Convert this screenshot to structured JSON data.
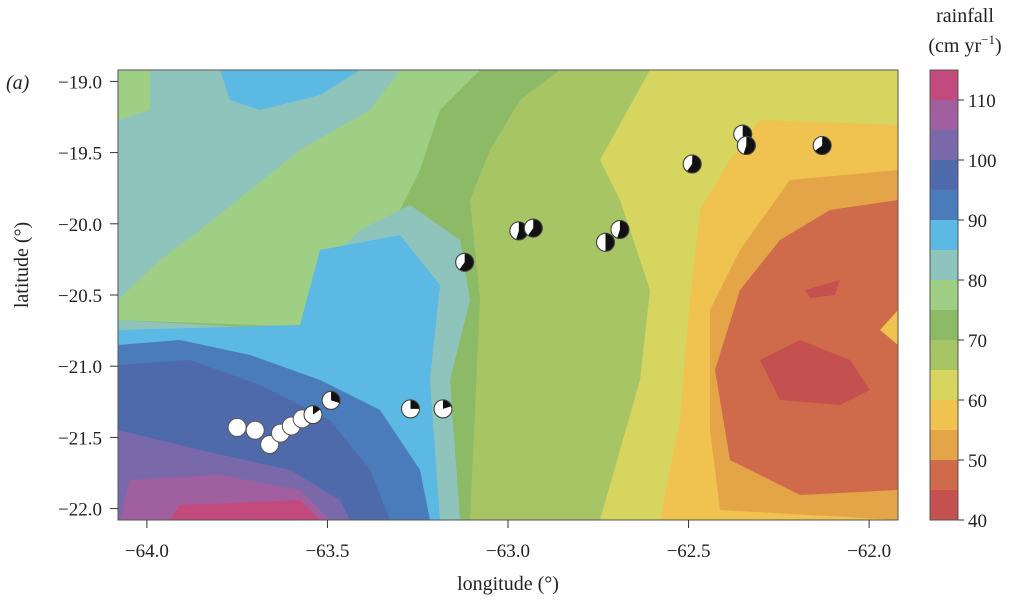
{
  "panel_label": "(a)",
  "chart_data": {
    "type": "heatmap",
    "title": "",
    "xlabel": "longitude (°)",
    "ylabel": "latitude (°)",
    "xlim": [
      -64.08,
      -61.92
    ],
    "ylim": [
      -22.08,
      -18.92
    ],
    "x_ticks": [
      -64.0,
      -63.5,
      -63.0,
      -62.5,
      -62.0
    ],
    "x_tick_labels": [
      "−64.0",
      "−63.5",
      "−63.0",
      "−62.5",
      "−62.0"
    ],
    "y_ticks": [
      -19.0,
      -19.5,
      -20.0,
      -20.5,
      -21.0,
      -21.5,
      -22.0
    ],
    "y_tick_labels": [
      "−19.0",
      "−19.5",
      "−20.0",
      "−20.5",
      "−21.0",
      "−21.5",
      "−22.0"
    ],
    "colorbar": {
      "title_line1": "rainfall",
      "title_line2": "(cm yr",
      "title_sup": "−1",
      "title_close": ")",
      "range": [
        40,
        115
      ],
      "ticks": [
        40,
        50,
        60,
        70,
        80,
        90,
        100,
        110
      ],
      "bands": [
        {
          "from": 40,
          "to": 45,
          "color": "#c4514f"
        },
        {
          "from": 45,
          "to": 50,
          "color": "#cf6a4a"
        },
        {
          "from": 50,
          "to": 55,
          "color": "#e3a548"
        },
        {
          "from": 55,
          "to": 60,
          "color": "#f0c250"
        },
        {
          "from": 60,
          "to": 65,
          "color": "#d5d55f"
        },
        {
          "from": 65,
          "to": 70,
          "color": "#a8c565"
        },
        {
          "from": 70,
          "to": 75,
          "color": "#8cba66"
        },
        {
          "from": 75,
          "to": 80,
          "color": "#9fcf84"
        },
        {
          "from": 80,
          "to": 85,
          "color": "#8fc4bc"
        },
        {
          "from": 85,
          "to": 90,
          "color": "#5bb9e3"
        },
        {
          "from": 90,
          "to": 95,
          "color": "#4a7bba"
        },
        {
          "from": 95,
          "to": 100,
          "color": "#4f6aaa"
        },
        {
          "from": 100,
          "to": 105,
          "color": "#7a69aa"
        },
        {
          "from": 105,
          "to": 110,
          "color": "#a0609f"
        },
        {
          "from": 110,
          "to": 115,
          "color": "#c34a7c"
        }
      ]
    },
    "sites": [
      {
        "lon": -63.75,
        "lat": -21.43,
        "fill_fraction": 0.0
      },
      {
        "lon": -63.7,
        "lat": -21.45,
        "fill_fraction": 0.0
      },
      {
        "lon": -63.66,
        "lat": -21.55,
        "fill_fraction": 0.0
      },
      {
        "lon": -63.63,
        "lat": -21.47,
        "fill_fraction": 0.0
      },
      {
        "lon": -63.6,
        "lat": -21.42,
        "fill_fraction": 0.0
      },
      {
        "lon": -63.57,
        "lat": -21.37,
        "fill_fraction": 0.0
      },
      {
        "lon": -63.54,
        "lat": -21.34,
        "fill_fraction": 0.15
      },
      {
        "lon": -63.49,
        "lat": -21.24,
        "fill_fraction": 0.3
      },
      {
        "lon": -63.27,
        "lat": -21.3,
        "fill_fraction": 0.25
      },
      {
        "lon": -63.18,
        "lat": -21.3,
        "fill_fraction": 0.2
      },
      {
        "lon": -63.12,
        "lat": -20.27,
        "fill_fraction": 0.6
      },
      {
        "lon": -62.97,
        "lat": -20.05,
        "fill_fraction": 0.55
      },
      {
        "lon": -62.93,
        "lat": -20.03,
        "fill_fraction": 0.6
      },
      {
        "lon": -62.73,
        "lat": -20.13,
        "fill_fraction": 0.5
      },
      {
        "lon": -62.69,
        "lat": -20.04,
        "fill_fraction": 0.55
      },
      {
        "lon": -62.49,
        "lat": -19.58,
        "fill_fraction": 0.6
      },
      {
        "lon": -62.35,
        "lat": -19.37,
        "fill_fraction": 0.5
      },
      {
        "lon": -62.34,
        "lat": -19.45,
        "fill_fraction": 0.55
      },
      {
        "lon": -62.13,
        "lat": -19.45,
        "fill_fraction": 0.65
      }
    ]
  }
}
